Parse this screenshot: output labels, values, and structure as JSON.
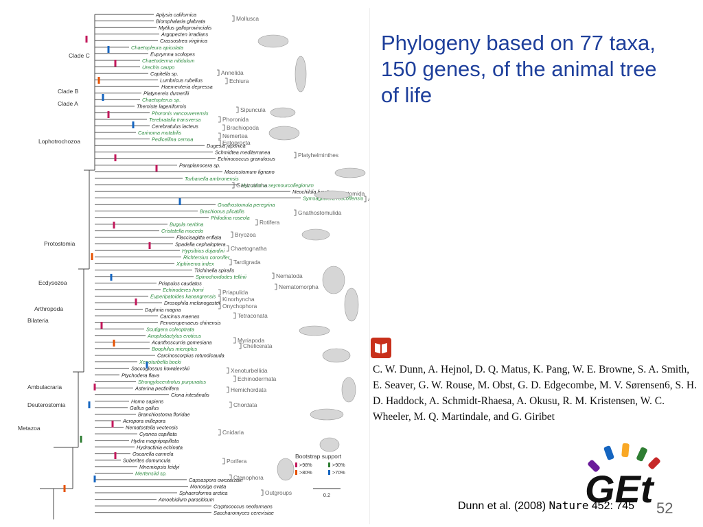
{
  "slide": {
    "title": "Phylogeny based on 77 taxa, 150 genes, of the animal tree of life",
    "authors": "C. W. Dunn, A. Hejnol, D. Q. Matus, K. Pang, W. E. Browne, S. A. Smith, E. Seaver, G. W. Rouse, M. Obst, G. D. Edgecombe, M. V. Sørensen6, S. H. D. Haddock, A. Schmidt-Rhaesa, A. Okusu, R. M. Kristensen, W. C. Wheeler, M. Q. Martindale, and G. Giribet",
    "citation_pre": "Dunn et al. (2008) ",
    "citation_journal": "Nature",
    "citation_post": " 452: 745",
    "slide_number": "52",
    "logo_text": "GEt"
  },
  "figure": {
    "taxa": [
      "Aplysia californica",
      "Biomphalaria glabrata",
      "Mytilus galloprovincialis",
      "Argopecten irradians",
      "Crassostrea virginica",
      "Chaetopleura apiculata",
      "Euprymna scolopes",
      "Chaetoderma nitidulum",
      "Urechis caupo",
      "Capitella sp.",
      "Lumbricus rubellus",
      "Haementeria depressa",
      "Platynereis dumerilii",
      "Chaetopterus sp.",
      "Themiste lageniformis",
      "Phoronis vancouverensis",
      "Terebratalia transversa",
      "Cerebratulus lacteus",
      "Carinoma mutabilis",
      "Pedicellina cernua",
      "Dugesia japonica",
      "Schmidtea mediterranea",
      "Echinococcus granulosus",
      "Paraplanocera sp.",
      "Macrostomum lignano",
      "Turbanella ambronensis",
      "Myzostoma seymourcollegiorum",
      "Neochildia fusca",
      "Symsagittifera roscoffensis",
      "Gnathostomula peregrina",
      "Brachionus plicatilis",
      "Philodina roseola",
      "Bugula neritina",
      "Cristatella mucedo",
      "Flaccisagitta enflata",
      "Spadella cephaloptera",
      "Hypsibius dujardini",
      "Richtersius coronifer",
      "Xiphinema index",
      "Trichinella spiralis",
      "Spinochordodes tellinii",
      "Priapulus caudatus",
      "Echinoderes horni",
      "Euperipatoides kanangrensis",
      "Drosophila melanogaster",
      "Daphnia magna",
      "Carcinus maenas",
      "Fenneropenaeus chinensis",
      "Scutigera coleoptrata",
      "Anoplodactylus eroticus",
      "Acanthoscurria gomesiana",
      "Boophilus microplus",
      "Carcinoscorpius rotundicauda",
      "Xenoturbella bocki",
      "Saccoglossus kowalevskii",
      "Ptychodera flava",
      "Strongylocentrotus purpuratus",
      "Asterina pectinifera",
      "Ciona intestinalis",
      "Homo sapiens",
      "Gallus gallus",
      "Branchiostoma floridae",
      "Acropora millepora",
      "Nematostella vectensis",
      "Cyanea capillata",
      "Hydra magnipapillata",
      "Hydractinia echinata",
      "Oscarella carmela",
      "Suberites domuncula",
      "Mnemiopsis leidyi",
      "Mertensiid sp.",
      "Capsaspora owczarzaki",
      "Monosiga ovata",
      "Sphaeroforma arctica",
      "Amoebidium parasiticum",
      "Cryptococcus neoformans",
      "Saccharomyces cerevisiae"
    ],
    "node_labels": [
      "Clade C",
      "Clade B",
      "Clade A",
      "Lophotrochozoa",
      "Protostomia",
      "Ecdysozoa",
      "Arthropoda",
      "Bilateria",
      "Ambulacraria",
      "Deuterostomia",
      "Metazoa"
    ],
    "groups": [
      "Mollusca",
      "Annelida",
      "Echiura",
      "Sipuncula",
      "Phoronida",
      "Brachiopoda",
      "Nemertea",
      "Entoprocta",
      "Platyhelminthes",
      "Gastrotricha",
      "Myzostomida",
      "Acoela",
      "Gnathostomulida",
      "Rotifera",
      "Bryozoa",
      "Chaetognatha",
      "Tardigrada",
      "Nematoda",
      "Nematomorpha",
      "Priapulida",
      "Kinorhyncha",
      "Onychophora",
      "Tetraconata",
      "Myriapoda",
      "Chelicerata",
      "Xenoturbellida",
      "Echinodermata",
      "Hemichordata",
      "Chordata",
      "Cnidaria",
      "Porifera",
      "Ctenophora",
      "Outgroups"
    ],
    "legend_title": "Bootstrap support",
    "legend_items": [
      ">98%",
      ">90%",
      ">80%",
      ">70%"
    ],
    "scale_label": "0.2",
    "colors": {
      "mark_a": "#c2185b",
      "mark_b": "#1565c0",
      "mark_c": "#e65100",
      "mark_d": "#2e7d32",
      "tree": "#444444",
      "group_text": "#666666",
      "taxon_text": "#222222",
      "bracket": "#555555",
      "green_taxon": "#2b8a3e",
      "title": "#1e3f9b"
    }
  }
}
